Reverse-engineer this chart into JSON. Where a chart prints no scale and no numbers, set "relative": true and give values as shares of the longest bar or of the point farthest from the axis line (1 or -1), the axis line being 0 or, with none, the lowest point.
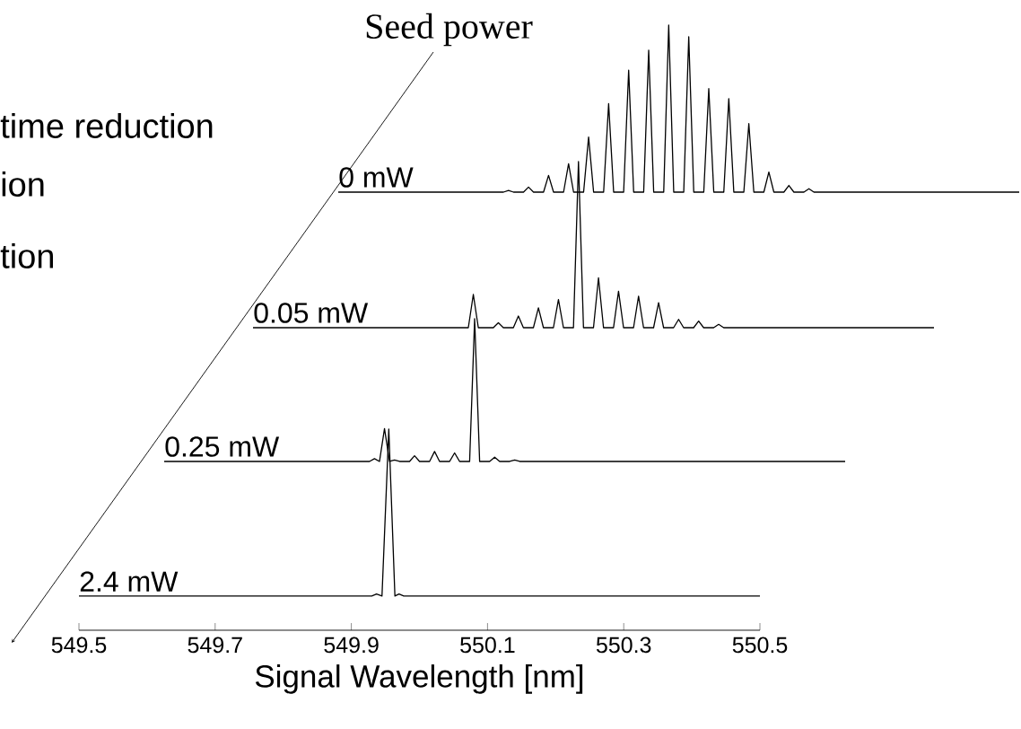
{
  "chart_data": [
    {
      "type": "line",
      "relative": true,
      "tick_labels": false,
      "annotations": [
        "Seed power",
        "time reduction",
        "ion",
        "tion"
      ],
      "categories": [
        null,
        null,
        null,
        null,
        null,
        null,
        null,
        null,
        null,
        null,
        null,
        null,
        null,
        null,
        null,
        null,
        null,
        null,
        null,
        null,
        null,
        null,
        null,
        null,
        null,
        null,
        null,
        null,
        null,
        null,
        null,
        null,
        null,
        null,
        null,
        null,
        null,
        null,
        null,
        null,
        null,
        null,
        null,
        null,
        null,
        null,
        null,
        null,
        null,
        null,
        null,
        null,
        null,
        null,
        null,
        null,
        null,
        null,
        null,
        null,
        null,
        null,
        null,
        null,
        null,
        null,
        null,
        null,
        null,
        null,
        null,
        null,
        null,
        null,
        null,
        null,
        null,
        null,
        null,
        null,
        null,
        null,
        null,
        null,
        null,
        null,
        null,
        null,
        null,
        null,
        null,
        null,
        null,
        null,
        null,
        null,
        null,
        null,
        null,
        null,
        null,
        null,
        null,
        null,
        null,
        null,
        null,
        null,
        null,
        null,
        null,
        null,
        null,
        null,
        null,
        null,
        null,
        null,
        null,
        null,
        null,
        null,
        null,
        null,
        null,
        null,
        null,
        null,
        null,
        null,
        null,
        null,
        null,
        null,
        null,
        null,
        null
      ],
      "series": [
        {
          "name": "0 mW",
          "color": "#000000",
          "values": [
            0,
            0,
            0,
            0,
            0,
            0,
            0,
            0,
            0,
            0,
            0,
            0,
            0,
            0,
            0,
            0,
            0,
            0,
            0,
            0,
            0,
            0,
            0,
            0,
            0,
            0,
            0,
            0,
            0,
            0,
            0,
            0,
            0,
            0,
            0.01,
            0,
            0,
            0,
            0.03,
            0,
            0,
            0,
            0.1,
            0,
            0,
            0,
            0.17,
            0,
            0,
            0,
            0.33,
            0,
            0,
            0,
            0.53,
            0,
            0,
            0,
            0.73,
            0,
            0,
            0,
            0.85,
            0,
            0,
            0,
            1.0,
            0,
            0,
            0,
            0.93,
            0,
            0,
            0,
            0.62,
            0,
            0,
            0,
            0.56,
            0,
            0,
            0,
            0.41,
            0,
            0,
            0,
            0.12,
            0,
            0,
            0,
            0.04,
            0,
            0,
            0,
            0.02,
            0,
            0,
            0,
            0,
            0,
            0,
            0,
            0,
            0,
            0,
            0,
            0,
            0,
            0,
            0,
            0,
            0,
            0,
            0,
            0,
            0,
            0,
            0,
            0,
            0,
            0,
            0,
            0,
            0,
            0,
            0,
            0,
            0,
            0,
            0,
            0,
            0,
            0,
            0,
            0,
            0,
            0
          ]
        }
      ]
    },
    {
      "type": "line",
      "relative": true,
      "tick_labels": false,
      "categories": [
        null,
        null,
        null,
        null,
        null,
        null,
        null,
        null,
        null,
        null,
        null,
        null,
        null,
        null,
        null,
        null,
        null,
        null,
        null,
        null,
        null,
        null,
        null,
        null,
        null,
        null,
        null,
        null,
        null,
        null,
        null,
        null,
        null,
        null,
        null,
        null,
        null,
        null,
        null,
        null,
        null,
        null,
        null,
        null,
        null,
        null,
        null,
        null,
        null,
        null,
        null,
        null,
        null,
        null,
        null,
        null,
        null,
        null,
        null,
        null,
        null,
        null,
        null,
        null,
        null,
        null,
        null,
        null,
        null,
        null,
        null,
        null,
        null,
        null,
        null,
        null,
        null,
        null,
        null,
        null,
        null,
        null,
        null,
        null,
        null,
        null,
        null,
        null,
        null,
        null,
        null,
        null,
        null,
        null,
        null,
        null,
        null,
        null,
        null,
        null,
        null,
        null,
        null,
        null,
        null,
        null,
        null,
        null,
        null,
        null,
        null,
        null,
        null,
        null,
        null,
        null,
        null,
        null,
        null,
        null,
        null,
        null,
        null,
        null,
        null,
        null,
        null,
        null,
        null,
        null,
        null,
        null,
        null,
        null,
        null,
        null,
        null
      ],
      "series": [
        {
          "name": "0.05 mW",
          "color": "#000000",
          "values": [
            0,
            0,
            0,
            0,
            0,
            0,
            0,
            0,
            0,
            0,
            0,
            0,
            0,
            0,
            0,
            0,
            0,
            0,
            0,
            0,
            0,
            0,
            0,
            0,
            0,
            0,
            0,
            0,
            0,
            0,
            0,
            0,
            0,
            0,
            0,
            0,
            0,
            0,
            0,
            0,
            0,
            0,
            0,
            0,
            0.2,
            0,
            0,
            0,
            0,
            0.03,
            0,
            0,
            0,
            0.07,
            0,
            0,
            0,
            0.12,
            0,
            0,
            0,
            0.17,
            0,
            0,
            0,
            1.0,
            0,
            0,
            0,
            0.3,
            0,
            0,
            0,
            0.22,
            0,
            0,
            0,
            0.19,
            0,
            0,
            0,
            0.15,
            0,
            0,
            0,
            0.05,
            0,
            0,
            0,
            0.04,
            0,
            0,
            0,
            0.02,
            0,
            0,
            0,
            0,
            0,
            0,
            0,
            0,
            0,
            0,
            0,
            0,
            0,
            0,
            0,
            0,
            0,
            0,
            0,
            0,
            0,
            0,
            0,
            0,
            0,
            0,
            0,
            0,
            0,
            0,
            0,
            0,
            0,
            0,
            0,
            0,
            0,
            0,
            0,
            0,
            0,
            0,
            0
          ]
        }
      ]
    },
    {
      "type": "line",
      "relative": true,
      "tick_labels": false,
      "categories": [
        null,
        null,
        null,
        null,
        null,
        null,
        null,
        null,
        null,
        null,
        null,
        null,
        null,
        null,
        null,
        null,
        null,
        null,
        null,
        null,
        null,
        null,
        null,
        null,
        null,
        null,
        null,
        null,
        null,
        null,
        null,
        null,
        null,
        null,
        null,
        null,
        null,
        null,
        null,
        null,
        null,
        null,
        null,
        null,
        null,
        null,
        null,
        null,
        null,
        null,
        null,
        null,
        null,
        null,
        null,
        null,
        null,
        null,
        null,
        null,
        null,
        null,
        null,
        null,
        null,
        null,
        null,
        null,
        null,
        null,
        null,
        null,
        null,
        null,
        null,
        null,
        null,
        null,
        null,
        null,
        null,
        null,
        null,
        null,
        null,
        null,
        null,
        null,
        null,
        null,
        null,
        null,
        null,
        null,
        null,
        null,
        null,
        null,
        null,
        null,
        null,
        null,
        null,
        null,
        null,
        null,
        null,
        null,
        null,
        null,
        null,
        null,
        null,
        null,
        null,
        null,
        null,
        null,
        null,
        null,
        null,
        null,
        null,
        null,
        null,
        null,
        null,
        null,
        null,
        null,
        null,
        null,
        null,
        null,
        null,
        null,
        null
      ],
      "series": [
        {
          "name": "0.25 mW",
          "color": "#000000",
          "values": [
            0,
            0,
            0,
            0,
            0,
            0,
            0,
            0,
            0,
            0,
            0,
            0,
            0,
            0,
            0,
            0,
            0,
            0,
            0,
            0,
            0,
            0,
            0,
            0,
            0,
            0,
            0,
            0,
            0,
            0,
            0,
            0,
            0,
            0,
            0,
            0,
            0,
            0,
            0,
            0,
            0,
            0,
            0.02,
            0,
            0.23,
            0,
            0.01,
            0,
            0,
            0,
            0.04,
            0,
            0,
            0,
            0.07,
            0,
            0,
            0,
            0.06,
            0,
            0,
            0,
            1.0,
            0,
            0,
            0,
            0.03,
            0,
            0,
            0,
            0.01,
            0,
            0,
            0,
            0,
            0,
            0,
            0,
            0,
            0,
            0,
            0,
            0,
            0,
            0,
            0,
            0,
            0,
            0,
            0,
            0,
            0,
            0,
            0,
            0,
            0,
            0,
            0,
            0,
            0,
            0,
            0,
            0,
            0,
            0,
            0,
            0,
            0,
            0,
            0,
            0,
            0,
            0,
            0,
            0,
            0,
            0,
            0,
            0,
            0,
            0,
            0,
            0,
            0,
            0,
            0,
            0,
            0,
            0,
            0,
            0,
            0,
            0,
            0,
            0,
            0,
            0
          ]
        }
      ]
    },
    {
      "type": "line",
      "relative": true,
      "xlim": [
        549.5,
        550.5
      ],
      "xticks": [
        549.5,
        549.7,
        549.9,
        550.1,
        550.3,
        550.5
      ],
      "xlabel": "Signal Wavelength  [nm]",
      "series": [
        {
          "name": "2.4 mW",
          "color": "#000000",
          "x": [
            549.5,
            549.93,
            549.937,
            549.945,
            549.955,
            549.964,
            549.97,
            549.977,
            550.5
          ],
          "values": [
            0.17,
            0.17,
            0.18,
            0.17,
            1.0,
            0.17,
            0.18,
            0.17,
            0.17
          ]
        }
      ]
    }
  ]
}
